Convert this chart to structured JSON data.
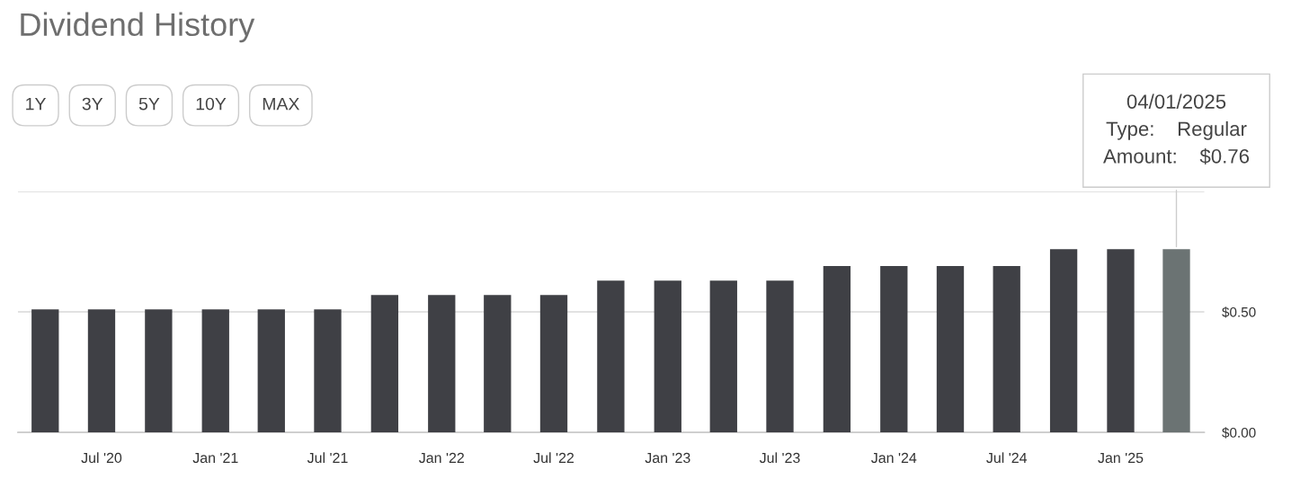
{
  "chart_data": {
    "type": "bar",
    "title": "Dividend History",
    "x": [
      "2020-04-01",
      "2020-07-01",
      "2020-10-01",
      "2021-01-01",
      "2021-04-01",
      "2021-07-01",
      "2021-10-01",
      "2022-01-01",
      "2022-04-01",
      "2022-07-01",
      "2022-10-01",
      "2023-01-01",
      "2023-04-01",
      "2023-07-01",
      "2023-10-01",
      "2024-01-01",
      "2024-04-01",
      "2024-07-01",
      "2024-10-01",
      "2025-01-01",
      "2025-04-01"
    ],
    "values": [
      0.51,
      0.51,
      0.51,
      0.51,
      0.51,
      0.51,
      0.57,
      0.57,
      0.57,
      0.57,
      0.63,
      0.63,
      0.63,
      0.63,
      0.69,
      0.69,
      0.69,
      0.69,
      0.76,
      0.76,
      0.76
    ],
    "colors": [
      "#3f4045",
      "#3f4045",
      "#3f4045",
      "#3f4045",
      "#3f4045",
      "#3f4045",
      "#3f4045",
      "#3f4045",
      "#3f4045",
      "#3f4045",
      "#3f4045",
      "#3f4045",
      "#3f4045",
      "#3f4045",
      "#3f4045",
      "#3f4045",
      "#3f4045",
      "#3f4045",
      "#3f4045",
      "#3f4045",
      "#6b7373"
    ],
    "xlim": [
      "2020-02-17",
      "2025-05-16"
    ],
    "xticks": [
      {
        "value": "2020-07-01",
        "label": "Jul '20"
      },
      {
        "value": "2021-01-01",
        "label": "Jan '21"
      },
      {
        "value": "2021-07-01",
        "label": "Jul '21"
      },
      {
        "value": "2022-01-01",
        "label": "Jan '22"
      },
      {
        "value": "2022-07-01",
        "label": "Jul '22"
      },
      {
        "value": "2023-01-01",
        "label": "Jan '23"
      },
      {
        "value": "2023-07-01",
        "label": "Jul '23"
      },
      {
        "value": "2024-01-01",
        "label": "Jan '24"
      },
      {
        "value": "2024-07-01",
        "label": "Jul '24"
      },
      {
        "value": "2025-01-01",
        "label": "Jan '25"
      }
    ],
    "ylim": [
      0,
      1.0
    ],
    "yticks": [
      {
        "value": 0,
        "label": "$0.00"
      },
      {
        "value": 0.5,
        "label": "$0.50"
      },
      {
        "value": 1.0,
        "label": null
      }
    ],
    "grid": "y",
    "annotations": [
      "1Y",
      "3Y",
      "5Y",
      "10Y",
      "MAX",
      {
        "text": "04/01/2025\nType:    Regular\nAmount:    $0.76",
        "x": "2025-04-01",
        "y": 0.76
      }
    ]
  }
}
